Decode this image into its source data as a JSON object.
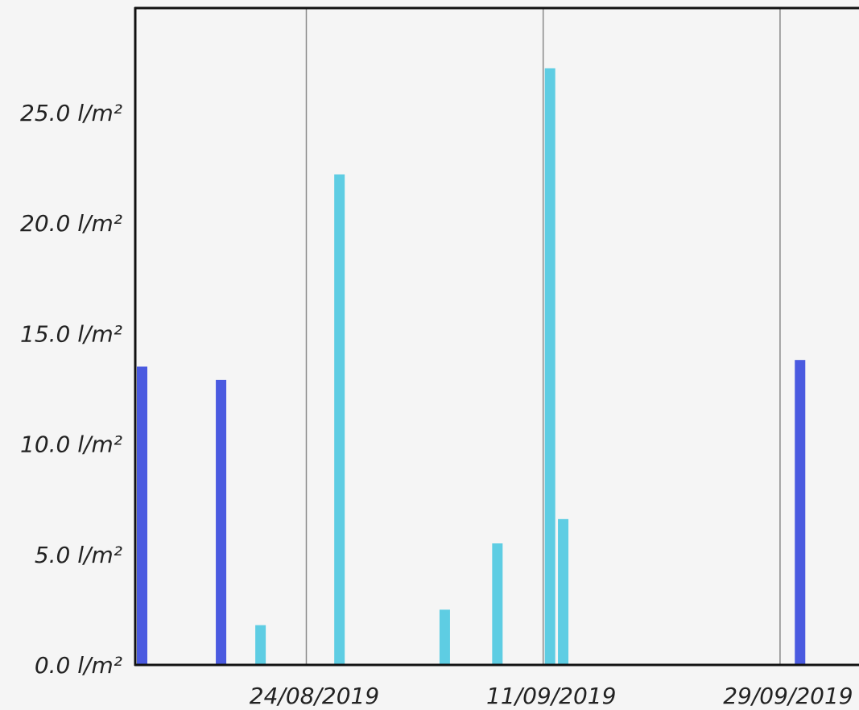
{
  "chart_data": {
    "type": "bar",
    "x_axis": {
      "ticks": [
        {
          "date": "2019-08-24",
          "label": "24/08/2019"
        },
        {
          "date": "2019-09-11",
          "label": "11/09/2019"
        },
        {
          "date": "2019-09-29",
          "label": "29/09/2019"
        }
      ],
      "range": [
        "2019-08-11",
        "2019-10-05"
      ]
    },
    "y_axis": {
      "ticks": [
        {
          "value": 0,
          "label": "0.0 l/m²"
        },
        {
          "value": 5,
          "label": "5.0 l/m²"
        },
        {
          "value": 10,
          "label": "10.0 l/m²"
        },
        {
          "value": 15,
          "label": "15.0 l/m²"
        },
        {
          "value": 20,
          "label": "20.0 l/m²"
        },
        {
          "value": 25,
          "label": "25.0 l/m²"
        }
      ],
      "ylim": [
        0,
        30
      ],
      "unit": "l/m²"
    },
    "grid": {
      "vertical": true,
      "horizontal": false
    },
    "series": [
      {
        "color": "#4a5ae0",
        "points": [
          {
            "x": "2019-08-11",
            "y": 13.5
          },
          {
            "x": "2019-08-17",
            "y": 12.9
          },
          {
            "x": "2019-09-30",
            "y": 13.8
          }
        ]
      },
      {
        "color": "#5ecde3",
        "points": [
          {
            "x": "2019-08-20",
            "y": 1.8
          },
          {
            "x": "2019-08-26",
            "y": 22.2
          },
          {
            "x": "2019-09-03",
            "y": 2.5
          },
          {
            "x": "2019-09-07",
            "y": 5.5
          },
          {
            "x": "2019-09-11",
            "y": 27.0
          },
          {
            "x": "2019-09-12",
            "y": 6.6
          }
        ]
      }
    ]
  }
}
